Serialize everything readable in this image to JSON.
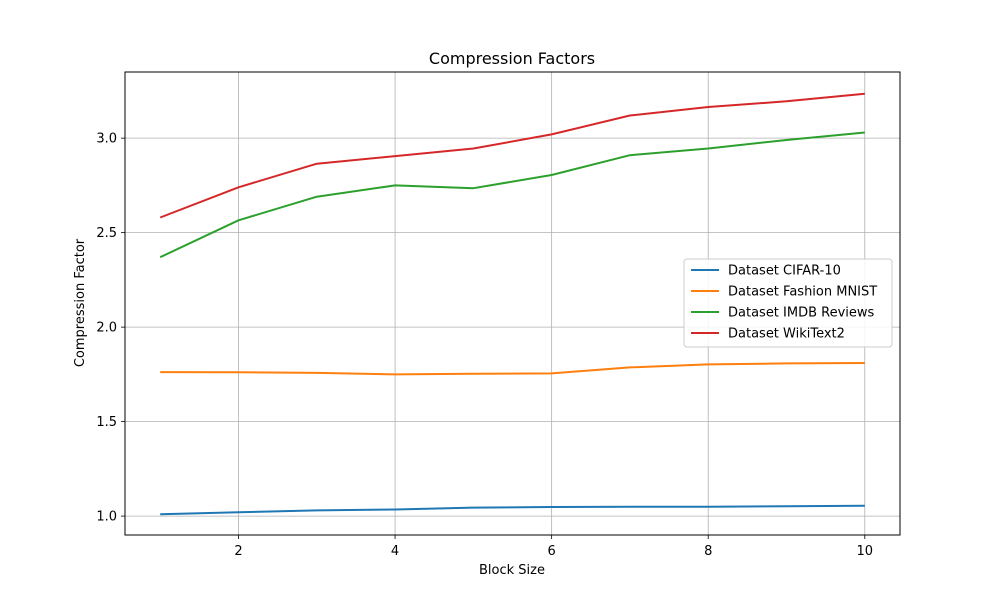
{
  "chart_data": {
    "type": "line",
    "title": "Compression Factors",
    "xlabel": "Block Size",
    "ylabel": "Compression Factor",
    "x": [
      1,
      2,
      3,
      4,
      5,
      6,
      7,
      8,
      9,
      10
    ],
    "xlim": [
      0.55,
      10.45
    ],
    "ylim": [
      0.9,
      3.35
    ],
    "xticks": [
      2,
      4,
      6,
      8,
      10
    ],
    "yticks": [
      1.0,
      1.5,
      2.0,
      2.5,
      3.0
    ],
    "xtick_labels": [
      "2",
      "4",
      "6",
      "8",
      "10"
    ],
    "ytick_labels": [
      "1.0",
      "1.5",
      "2.0",
      "2.5",
      "3.0"
    ],
    "grid": true,
    "legend_position": "center-right",
    "series": [
      {
        "name": "Dataset CIFAR-10",
        "color": "#1f77b4",
        "values": [
          1.01,
          1.02,
          1.03,
          1.035,
          1.045,
          1.048,
          1.049,
          1.05,
          1.052,
          1.055
        ]
      },
      {
        "name": "Dataset Fashion MNIST",
        "color": "#ff7f0e",
        "values": [
          1.762,
          1.761,
          1.758,
          1.75,
          1.753,
          1.755,
          1.787,
          1.803,
          1.808,
          1.81
        ]
      },
      {
        "name": "Dataset IMDB Reviews",
        "color": "#2ca02c",
        "values": [
          2.37,
          2.565,
          2.69,
          2.75,
          2.735,
          2.805,
          2.91,
          2.945,
          2.99,
          3.03
        ]
      },
      {
        "name": "Dataset WikiText2",
        "color": "#d62728",
        "values": [
          2.58,
          2.74,
          2.865,
          2.905,
          2.945,
          3.02,
          3.12,
          3.165,
          3.195,
          3.235
        ]
      }
    ]
  }
}
